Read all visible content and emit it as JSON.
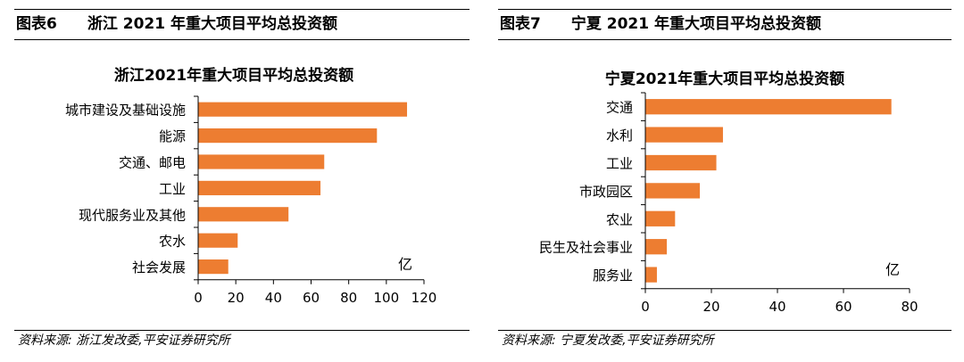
{
  "panels": [
    {
      "fig_label": "图表6",
      "fig_title": "浙江 2021 年重大项目平均总投资额",
      "source": "资料来源: 浙江发改委,平安证券研究所"
    },
    {
      "fig_label": "图表7",
      "fig_title": "宁夏 2021 年重大项目平均总投资额",
      "source": "资料来源: 宁夏发改委,平安证券研究所"
    }
  ],
  "colors": {
    "bar": "#ED7D31",
    "axis": "#000000"
  },
  "chart_data": [
    {
      "type": "bar",
      "orientation": "horizontal",
      "title": "浙江2021年重大项目平均总投资额",
      "categories": [
        "城市建设及基础设施",
        "能源",
        "交通、邮电",
        "工业",
        "现代服务业及其他",
        "农水",
        "社会发展"
      ],
      "values": [
        111,
        95,
        67,
        65,
        48,
        21,
        16
      ],
      "unit": "亿",
      "xlim": [
        0,
        120
      ],
      "xticks": [
        0,
        20,
        40,
        60,
        80,
        100,
        120
      ],
      "grid": false
    },
    {
      "type": "bar",
      "orientation": "horizontal",
      "title": "宁夏2021年重大项目平均总投资额",
      "categories": [
        "交通",
        "水利",
        "工业",
        "市政园区",
        "农业",
        "民生及社会事业",
        "服务业"
      ],
      "values": [
        74.5,
        23.5,
        21.5,
        16.5,
        9,
        6.5,
        3.5
      ],
      "unit": "亿",
      "xlim": [
        0,
        80
      ],
      "xticks": [
        0,
        20,
        40,
        60,
        80
      ],
      "grid": false
    }
  ]
}
